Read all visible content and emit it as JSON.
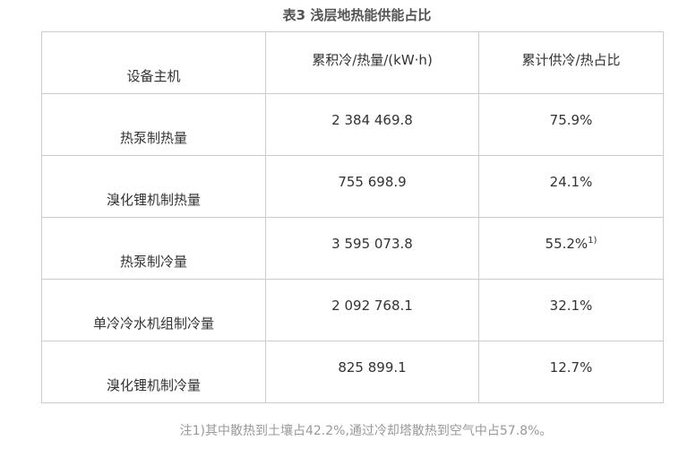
{
  "title": "表3 浅层地热能供能占比",
  "headers": [
    "设备主机",
    "累积冷/热量/(kW·h)",
    "累计供冷/热占比"
  ],
  "rows": [
    {
      "name": "热泵制热量",
      "value": "2 384 469.8",
      "ratio": "75.9%",
      "sup": ""
    },
    {
      "name": "溴化锂机制热量",
      "value": "755 698.9",
      "ratio": "24.1%",
      "sup": ""
    },
    {
      "name": "热泵制冷量",
      "value": "3 595 073.8",
      "ratio": "55.2%",
      "sup": "1)"
    },
    {
      "name": "单冷冷水机组制冷量",
      "value": "2 092 768.1",
      "ratio": "32.1%",
      "sup": ""
    },
    {
      "name": "溴化锂机制冷量",
      "value": "825 899.1",
      "ratio": "12.7%",
      "sup": ""
    }
  ],
  "note": "注1)其中散热到土壤占42.2%,通过冷却塔散热到空气中占57.8%。"
}
